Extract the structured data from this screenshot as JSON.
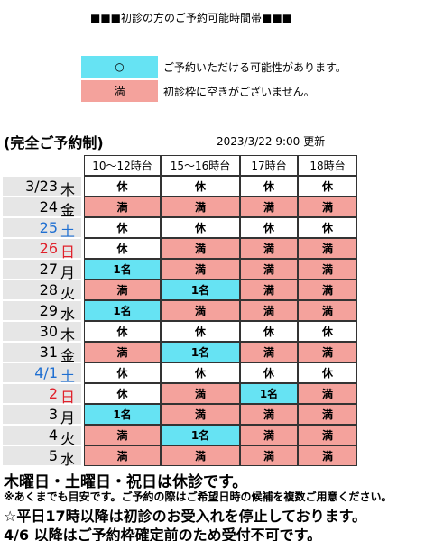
{
  "header": {
    "title": "■■■初診の方のご予約可能時間帯■■■"
  },
  "legend": [
    {
      "symbol": "○",
      "text": "ご予約いただける可能性があります。",
      "color": "#66e3f3"
    },
    {
      "symbol": "満",
      "text": "初診枠に空きがございません。",
      "color": "#f4a29c"
    }
  ],
  "note": "(完全ご予約制)",
  "updated": "2023/3/22 9:00 更新",
  "table": {
    "columns": [
      "10～12時台",
      "15～16時台",
      "17時台",
      "18時台"
    ],
    "rows": [
      {
        "date": "3/23",
        "day": "木",
        "color": "#000000",
        "cells": [
          {
            "text": "休",
            "color": "#ffffff"
          },
          {
            "text": "休",
            "color": "#ffffff"
          },
          {
            "text": "休",
            "color": "#ffffff"
          },
          {
            "text": "休",
            "color": "#ffffff"
          }
        ]
      },
      {
        "date": "24",
        "day": "金",
        "color": "#000000",
        "cells": [
          {
            "text": "満",
            "color": "#f4a29c"
          },
          {
            "text": "満",
            "color": "#f4a29c"
          },
          {
            "text": "満",
            "color": "#f4a29c"
          },
          {
            "text": "満",
            "color": "#f4a29c"
          }
        ]
      },
      {
        "date": "25",
        "day": "土",
        "color": "#1f6fd1",
        "cells": [
          {
            "text": "休",
            "color": "#ffffff"
          },
          {
            "text": "休",
            "color": "#ffffff"
          },
          {
            "text": "休",
            "color": "#ffffff"
          },
          {
            "text": "休",
            "color": "#ffffff"
          }
        ]
      },
      {
        "date": "26",
        "day": "日",
        "color": "#e0202a",
        "cells": [
          {
            "text": "休",
            "color": "#ffffff"
          },
          {
            "text": "満",
            "color": "#f4a29c"
          },
          {
            "text": "満",
            "color": "#f4a29c"
          },
          {
            "text": "満",
            "color": "#f4a29c"
          }
        ]
      },
      {
        "date": "27",
        "day": "月",
        "color": "#000000",
        "cells": [
          {
            "text": "1名",
            "color": "#66e3f3"
          },
          {
            "text": "満",
            "color": "#f4a29c"
          },
          {
            "text": "満",
            "color": "#f4a29c"
          },
          {
            "text": "満",
            "color": "#f4a29c"
          }
        ]
      },
      {
        "date": "28",
        "day": "火",
        "color": "#000000",
        "cells": [
          {
            "text": "満",
            "color": "#f4a29c"
          },
          {
            "text": "1名",
            "color": "#66e3f3"
          },
          {
            "text": "満",
            "color": "#f4a29c"
          },
          {
            "text": "満",
            "color": "#f4a29c"
          }
        ]
      },
      {
        "date": "29",
        "day": "水",
        "color": "#000000",
        "cells": [
          {
            "text": "1名",
            "color": "#66e3f3"
          },
          {
            "text": "満",
            "color": "#f4a29c"
          },
          {
            "text": "満",
            "color": "#f4a29c"
          },
          {
            "text": "満",
            "color": "#f4a29c"
          }
        ]
      },
      {
        "date": "30",
        "day": "木",
        "color": "#000000",
        "cells": [
          {
            "text": "休",
            "color": "#ffffff"
          },
          {
            "text": "休",
            "color": "#ffffff"
          },
          {
            "text": "休",
            "color": "#ffffff"
          },
          {
            "text": "休",
            "color": "#ffffff"
          }
        ]
      },
      {
        "date": "31",
        "day": "金",
        "color": "#000000",
        "cells": [
          {
            "text": "満",
            "color": "#f4a29c"
          },
          {
            "text": "1名",
            "color": "#66e3f3"
          },
          {
            "text": "満",
            "color": "#f4a29c"
          },
          {
            "text": "満",
            "color": "#f4a29c"
          }
        ]
      },
      {
        "date": "4/1",
        "day": "土",
        "color": "#1f6fd1",
        "cells": [
          {
            "text": "休",
            "color": "#ffffff"
          },
          {
            "text": "休",
            "color": "#ffffff"
          },
          {
            "text": "休",
            "color": "#ffffff"
          },
          {
            "text": "休",
            "color": "#ffffff"
          }
        ]
      },
      {
        "date": "2",
        "day": "日",
        "color": "#e0202a",
        "cells": [
          {
            "text": "休",
            "color": "#ffffff"
          },
          {
            "text": "満",
            "color": "#f4a29c"
          },
          {
            "text": "1名",
            "color": "#66e3f3"
          },
          {
            "text": "満",
            "color": "#f4a29c"
          }
        ]
      },
      {
        "date": "3",
        "day": "月",
        "color": "#000000",
        "cells": [
          {
            "text": "1名",
            "color": "#66e3f3"
          },
          {
            "text": "満",
            "color": "#f4a29c"
          },
          {
            "text": "満",
            "color": "#f4a29c"
          },
          {
            "text": "満",
            "color": "#f4a29c"
          }
        ]
      },
      {
        "date": "4",
        "day": "火",
        "color": "#000000",
        "cells": [
          {
            "text": "満",
            "color": "#f4a29c"
          },
          {
            "text": "1名",
            "color": "#66e3f3"
          },
          {
            "text": "満",
            "color": "#f4a29c"
          },
          {
            "text": "満",
            "color": "#f4a29c"
          }
        ]
      },
      {
        "date": "5",
        "day": "水",
        "color": "#000000",
        "cells": [
          {
            "text": "満",
            "color": "#f4a29c"
          },
          {
            "text": "満",
            "color": "#f4a29c"
          },
          {
            "text": "満",
            "color": "#f4a29c"
          },
          {
            "text": "満",
            "color": "#f4a29c"
          }
        ]
      }
    ]
  },
  "footnotes": [
    "木曜日・土曜日・祝日は休診です。",
    "※あくまでも目安です。ご予約の際はご希望日時の候補を複数ご用意ください。",
    "☆平日17時以降は初診のお受入れを停止しております。",
    "4/6 以降はご予約枠確定前のため受付不可です。"
  ]
}
